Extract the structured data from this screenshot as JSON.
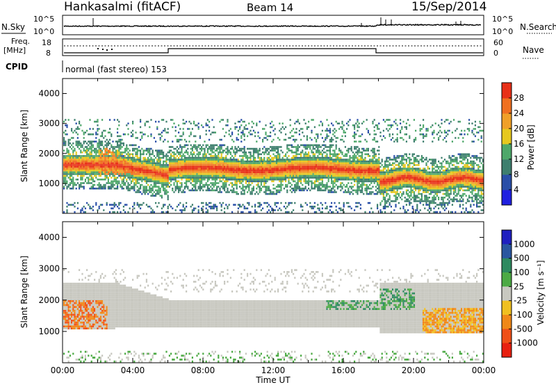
{
  "header": {
    "station": "Hankasalmi (fitACF)",
    "beam": "Beam 14",
    "date": "15/Sep/2014"
  },
  "top_panels": {
    "nsky_label": "N.Sky",
    "nsky_ticks": [
      "10^5",
      "10^0"
    ],
    "nsearch_label": "N.Search",
    "nsearch_ticks": [
      "10^5",
      "10^0"
    ],
    "freq_label": "Freq.",
    "freq_unit": "[MHz]",
    "freq_ticks": [
      "18",
      "8"
    ],
    "nave_label": "Nave",
    "nave_ticks": [
      "60",
      "0"
    ],
    "cpid_label": "CPID",
    "cpid_text": "normal (fast stereo) 153"
  },
  "colors": {
    "power_scale": [
      "#2020e0",
      "#2a4fa8",
      "#3e7f6e",
      "#4ea86a",
      "#e6c81e",
      "#f0a028",
      "#f07020",
      "#e83018"
    ],
    "velocity_scale": [
      "#e82010",
      "#f05018",
      "#f08818",
      "#f0c020",
      "#c8c8c0",
      "#4caa44",
      "#2e8a60",
      "#2a56a0",
      "#2020c0"
    ]
  },
  "chart_data": [
    {
      "type": "heatmap",
      "name": "power",
      "ylabel": "Slant Range [km]",
      "yticks": [
        "1000",
        "2000",
        "3000",
        "4000"
      ],
      "ylim": [
        0,
        4500
      ],
      "xlim": [
        "00:00",
        "24:00"
      ],
      "colorbar_label": "Power [dB]",
      "colorbar_ticks": [
        "4",
        "8",
        "12",
        "16",
        "20",
        "24",
        "28"
      ],
      "bands": [
        {
          "t0": 0.0,
          "t1": 3.0,
          "r0": 1000,
          "r1": 2600,
          "level_db": 16
        },
        {
          "t0": 3.0,
          "t1": 6.0,
          "r0": 1100,
          "r1": 2200,
          "level_db": 24
        },
        {
          "t0": 6.0,
          "t1": 18.0,
          "r0": 1150,
          "r1": 1900,
          "level_db": 26
        },
        {
          "t0": 18.0,
          "t1": 24.0,
          "r0": 900,
          "r1": 2300,
          "level_db": 22
        }
      ]
    },
    {
      "type": "heatmap",
      "name": "velocity",
      "ylabel": "Slant Range [km]",
      "yticks": [
        "1000",
        "2000",
        "3000",
        "4000"
      ],
      "ylim": [
        0,
        4500
      ],
      "xlim": [
        "00:00",
        "24:00"
      ],
      "xticks": [
        "00:00",
        "04:00",
        "08:00",
        "12:00",
        "16:00",
        "20:00",
        "00:00"
      ],
      "xlabel": "Time UT",
      "colorbar_label": "Velocity [m s⁻¹]",
      "colorbar_ticks": [
        "1000",
        "500",
        "100",
        "25",
        "-25",
        "-100",
        "-500",
        "-1000"
      ]
    }
  ]
}
